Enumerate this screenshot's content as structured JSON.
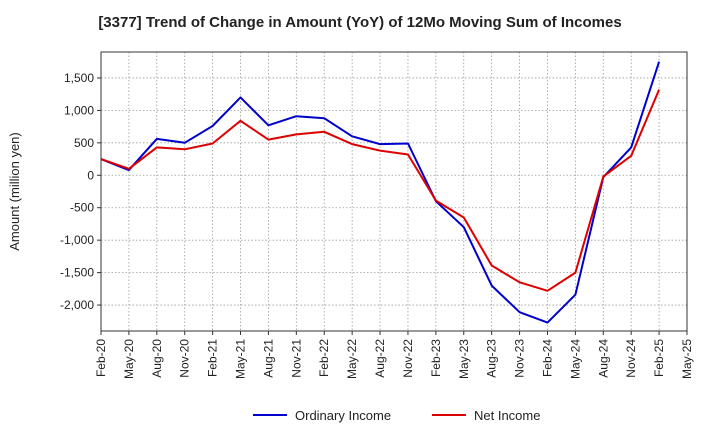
{
  "chart_data": {
    "type": "line",
    "title": "[3377]  Trend of Change in Amount (YoY) of 12Mo Moving Sum of Incomes",
    "xlabel": "",
    "ylabel": "Amount (million yen)",
    "ylim": [
      -2400,
      1900
    ],
    "yticks": [
      1500,
      1000,
      500,
      0,
      -500,
      -1000,
      -1500,
      -2000
    ],
    "ytick_labels": [
      "1,500",
      "1,000",
      "500",
      "0",
      "-500",
      "-1,000",
      "-1,500",
      "-2,000"
    ],
    "x_tick_labels": [
      "Feb-20",
      "May-20",
      "Aug-20",
      "Nov-20",
      "Feb-21",
      "May-21",
      "Aug-21",
      "Nov-21",
      "Feb-22",
      "May-22",
      "Aug-22",
      "Nov-22",
      "Feb-23",
      "May-23",
      "Aug-23",
      "Nov-23",
      "Feb-24",
      "May-24",
      "Aug-24",
      "Nov-24",
      "Feb-25",
      "May-25"
    ],
    "x": [
      "Feb-20",
      "May-20",
      "Aug-20",
      "Nov-20",
      "Feb-21",
      "May-21",
      "Aug-21",
      "Nov-21",
      "Feb-22",
      "May-22",
      "Aug-22",
      "Nov-22",
      "Feb-23",
      "May-23",
      "Aug-23",
      "Nov-23",
      "Feb-24",
      "May-24",
      "Aug-24",
      "Nov-24",
      "Feb-25"
    ],
    "grid": true,
    "legend_position": "bottom-center",
    "series": [
      {
        "name": "Ordinary Income",
        "color": "#0000cc",
        "values": [
          250,
          80,
          560,
          500,
          760,
          1200,
          770,
          910,
          880,
          600,
          480,
          490,
          -400,
          -800,
          -1700,
          -2110,
          -2270,
          -1840,
          -30,
          430,
          1750
        ]
      },
      {
        "name": "Net Income",
        "color": "#dd0000",
        "values": [
          250,
          100,
          430,
          400,
          490,
          840,
          550,
          630,
          670,
          480,
          380,
          320,
          -390,
          -650,
          -1390,
          -1650,
          -1780,
          -1500,
          -20,
          300,
          1320
        ]
      }
    ]
  }
}
